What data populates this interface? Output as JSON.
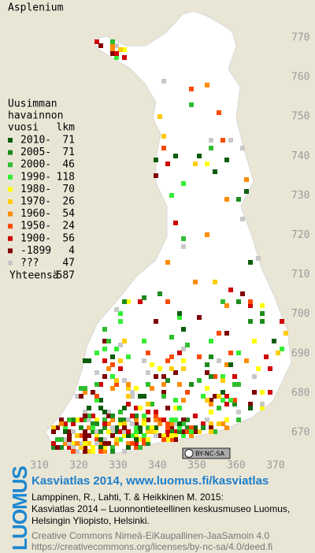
{
  "title": "Asplenium",
  "legend": {
    "heading": [
      "Uusimman",
      "havainnon",
      "vuosi"
    ],
    "count_heading": "lkm",
    "items": [
      {
        "label": "2010-",
        "count": 71,
        "color": "#0b5d0b"
      },
      {
        "label": "2005-",
        "count": 71,
        "color": "#1c8c1c"
      },
      {
        "label": "2000-",
        "count": 46,
        "color": "#2ebd2e"
      },
      {
        "label": "1990-",
        "count": 118,
        "color": "#33ee33"
      },
      {
        "label": "1980-",
        "count": 70,
        "color": "#ffff00"
      },
      {
        "label": "1970-",
        "count": 26,
        "color": "#ffcc00"
      },
      {
        "label": "1960-",
        "count": 54,
        "color": "#ff8c00"
      },
      {
        "label": "1950-",
        "count": 24,
        "color": "#ff4a00"
      },
      {
        "label": "1900-",
        "count": 56,
        "color": "#d00000"
      },
      {
        "label": "-1899",
        "count": 4,
        "color": "#800000"
      },
      {
        "label": "???",
        "count": 47,
        "color": "#c8c8c8"
      }
    ],
    "total_label": "Yhteensä",
    "total": 587
  },
  "axes": {
    "x_labels": [
      310,
      320,
      330,
      340,
      350,
      360,
      370
    ],
    "y_labels": [
      770,
      760,
      750,
      740,
      730,
      720,
      710,
      700,
      690,
      680,
      670
    ]
  },
  "license_badge": "BY-NC-SA",
  "footer": {
    "logo": "LUOMUS",
    "title": "Kasviatlas 2014, www.luomus.fi/kasviatlas",
    "citation": [
      "Lamppinen, R., Lahti, T. & Heikkinen M. 2015:",
      "Kasviatlas 2014 – Luonnontieteellinen keskusmuseo Luomus,",
      "Helsingin Yliopisto, Helsinki."
    ],
    "license": [
      "Creative Commons Nimeä-EiKaupallinen-JaaSamoin 4.0",
      "https://creativecommons.org/licenses/by-nc-sa/4.0/deed.fi"
    ]
  }
}
